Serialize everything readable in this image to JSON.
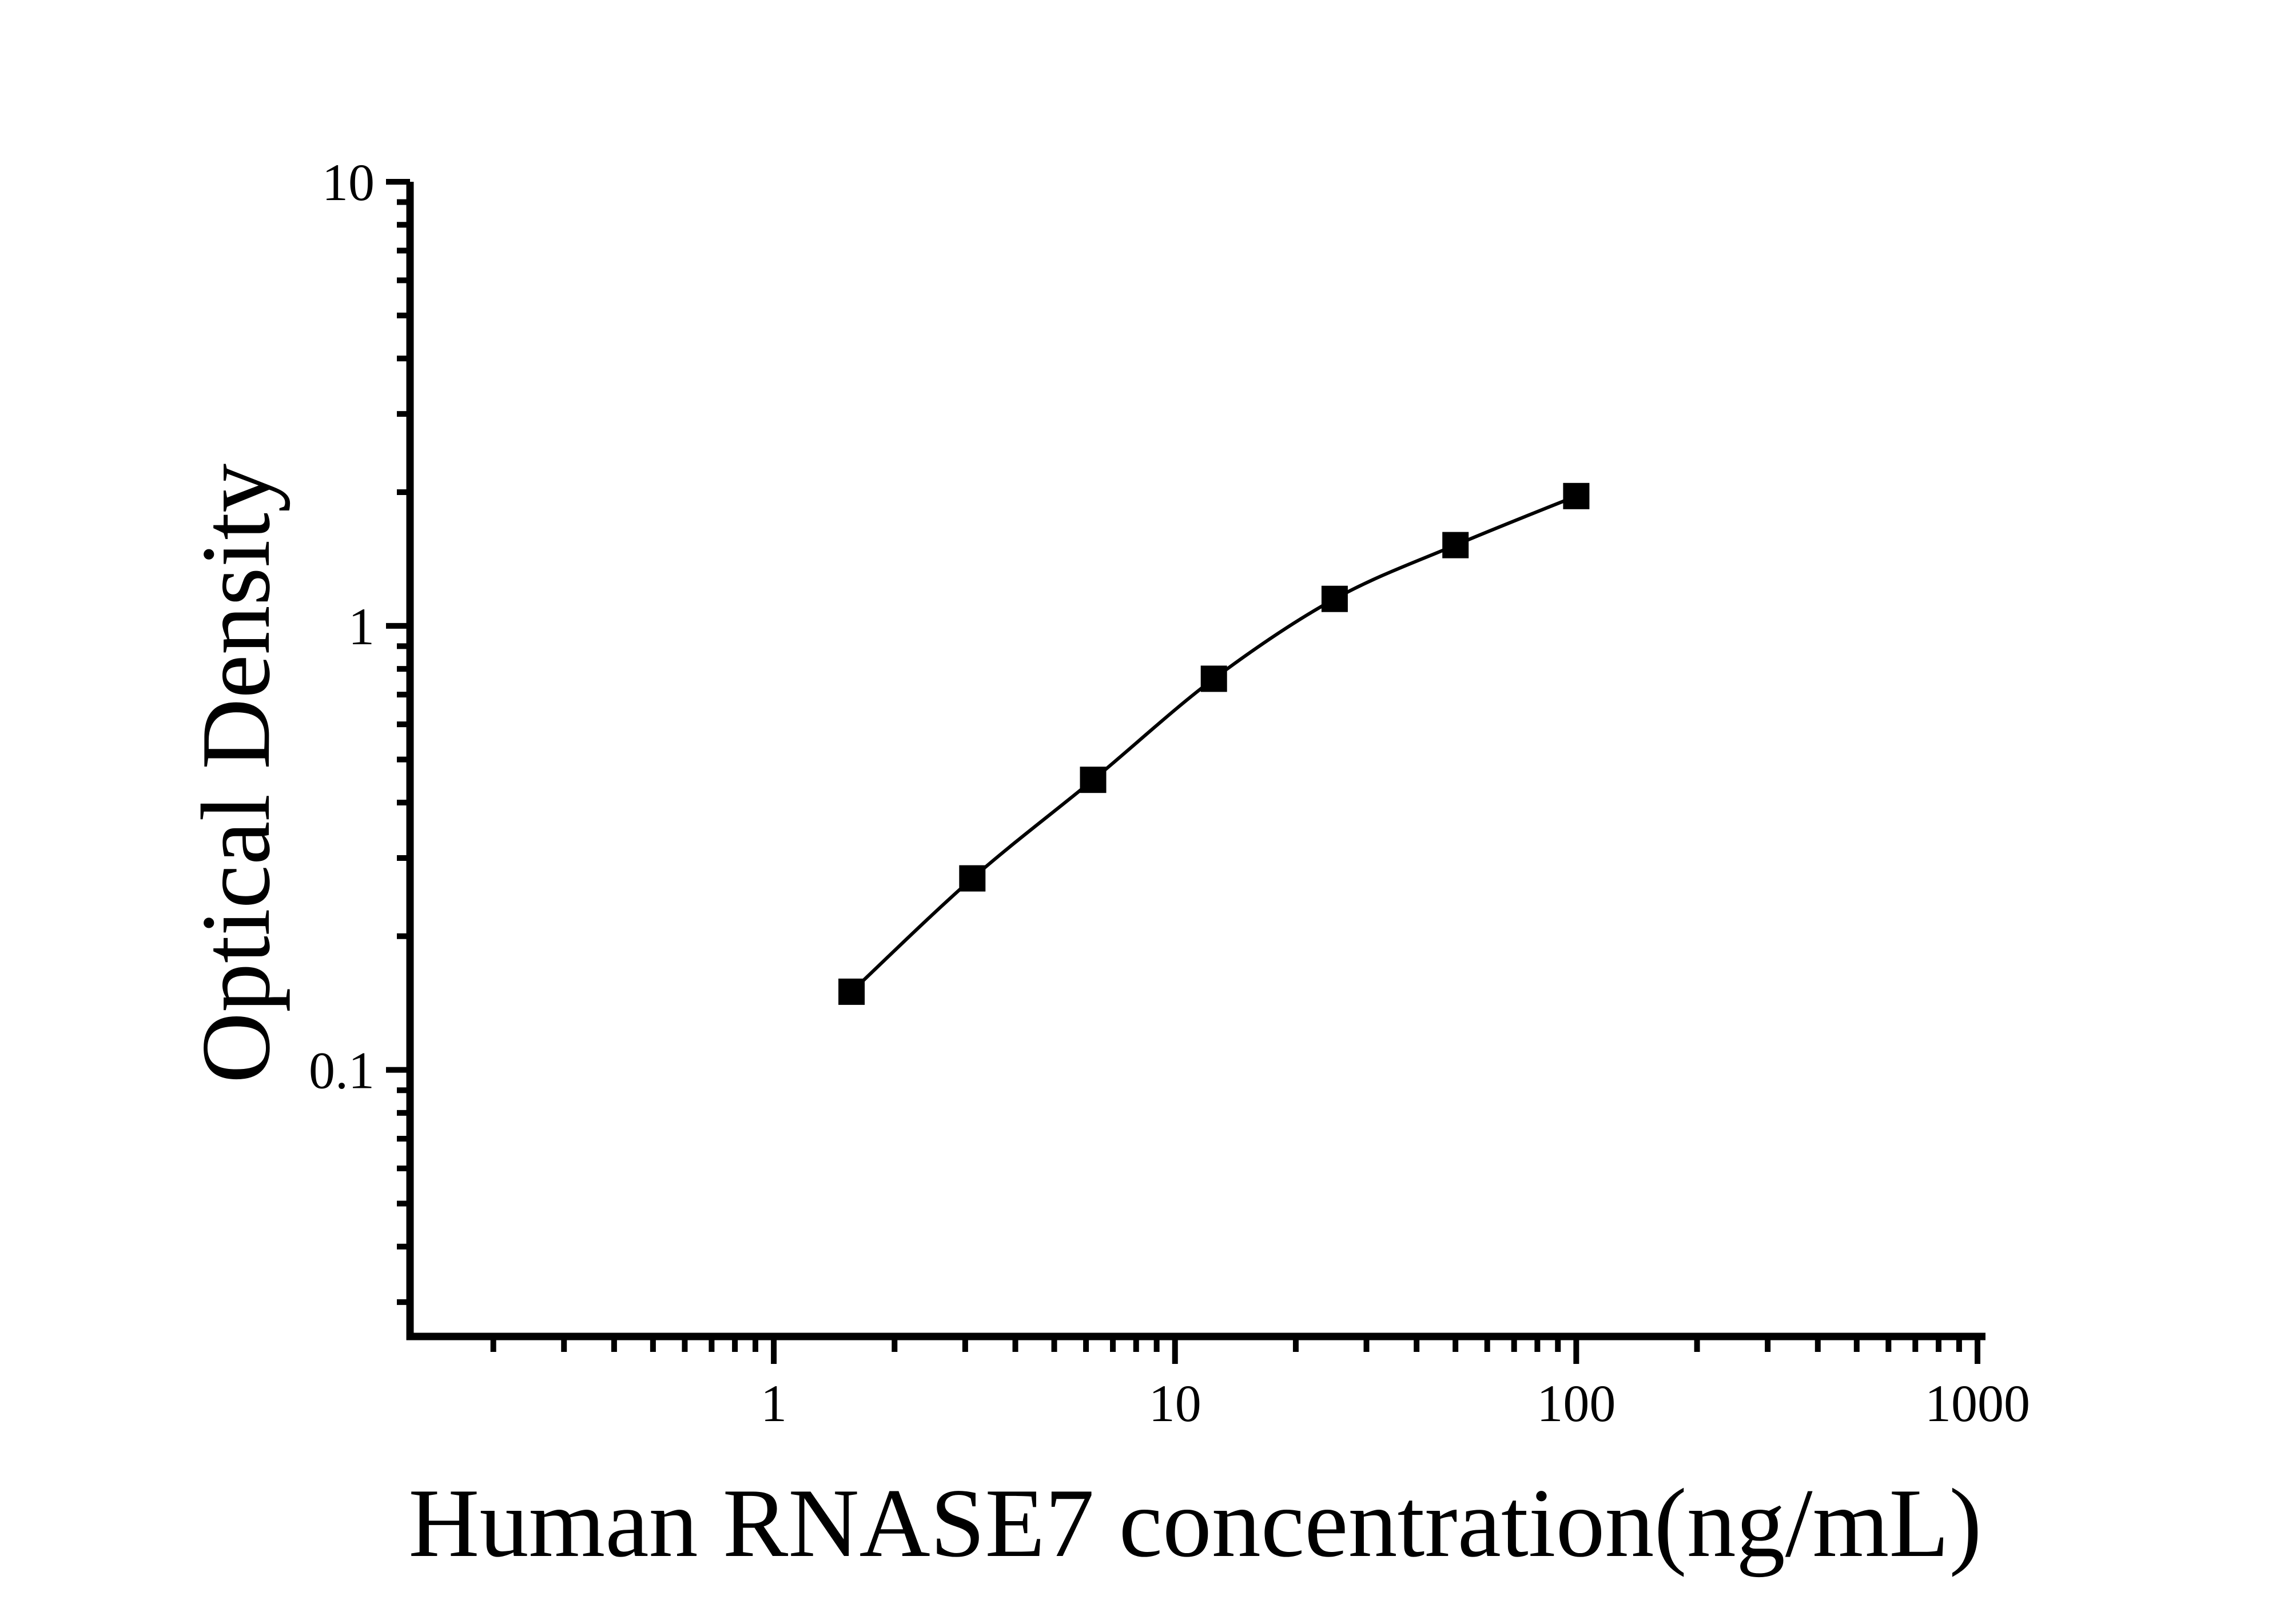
{
  "figure": {
    "background": "#ffffff",
    "ink_color": "#000000"
  },
  "chart_data": {
    "type": "line",
    "title": "",
    "xlabel": "Human RNASE7 concentration(ng/mL)",
    "ylabel": "Optical Density",
    "x_scale": "log",
    "y_scale": "log",
    "xlim": [
      0.124,
      1047
    ],
    "ylim": [
      0.0251,
      10
    ],
    "grid": false,
    "legend": "none",
    "marker_style": "filled-square",
    "x_major_ticks": [
      {
        "value": 1,
        "label": "1"
      },
      {
        "value": 10,
        "label": "10"
      },
      {
        "value": 100,
        "label": "100"
      },
      {
        "value": 1000,
        "label": "1000"
      }
    ],
    "x_minor_ticks": [
      0.2,
      0.3,
      0.4,
      0.5,
      0.6,
      0.7,
      0.8,
      0.9,
      2,
      3,
      4,
      5,
      6,
      7,
      8,
      9,
      20,
      30,
      40,
      50,
      60,
      70,
      80,
      90,
      200,
      300,
      400,
      500,
      600,
      700,
      800,
      900
    ],
    "y_major_ticks": [
      {
        "value": 10,
        "label": "10"
      },
      {
        "value": 1,
        "label": "1"
      },
      {
        "value": 0.1,
        "label": "0.1"
      }
    ],
    "y_minor_ticks": [
      9,
      8,
      7,
      6,
      5,
      4,
      3,
      2,
      0.9,
      0.8,
      0.7,
      0.6,
      0.5,
      0.4,
      0.3,
      0.2,
      0.09,
      0.08,
      0.07,
      0.06,
      0.05,
      0.04,
      0.03
    ],
    "series": [
      {
        "name": "standard-curve",
        "points": [
          {
            "x": 1.5625,
            "y": 0.15
          },
          {
            "x": 3.125,
            "y": 0.27
          },
          {
            "x": 6.25,
            "y": 0.45
          },
          {
            "x": 12.5,
            "y": 0.76
          },
          {
            "x": 25,
            "y": 1.15
          },
          {
            "x": 50,
            "y": 1.52
          },
          {
            "x": 100,
            "y": 1.96
          }
        ]
      }
    ]
  }
}
